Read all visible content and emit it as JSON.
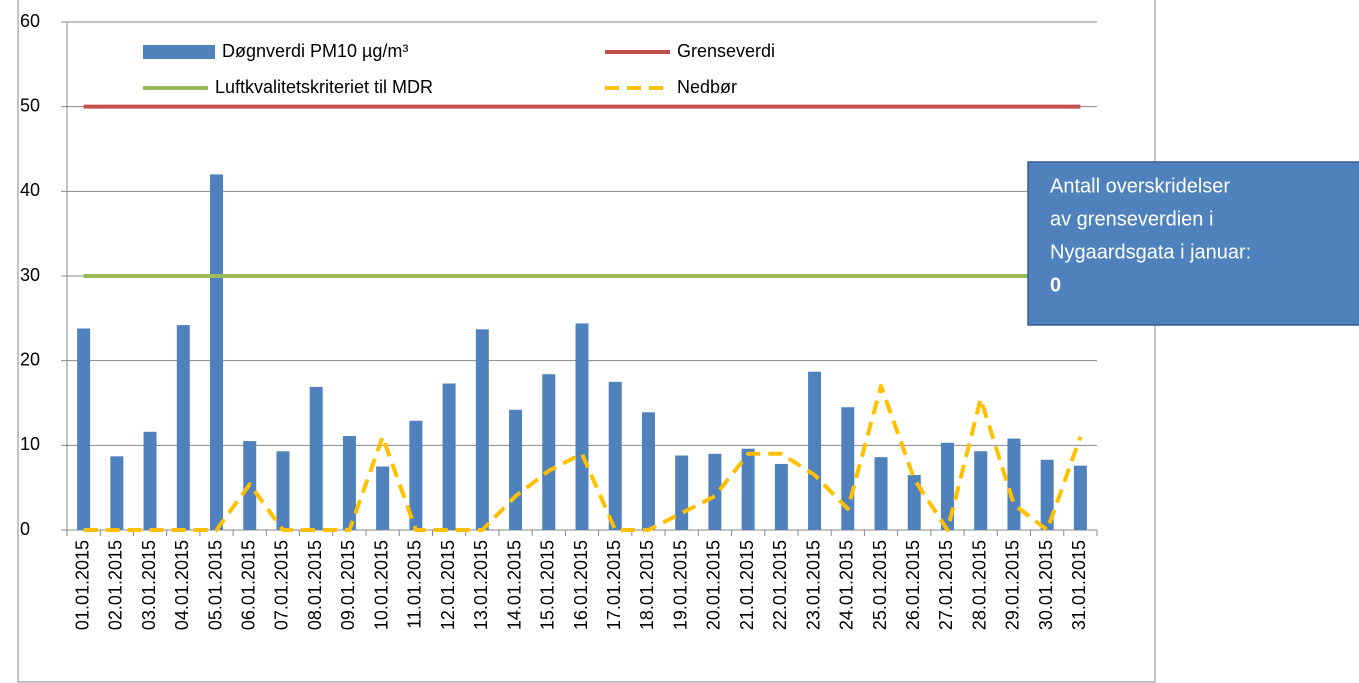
{
  "chart_data": {
    "type": "bar",
    "categories": [
      "01.01.2015",
      "02.01.2015",
      "03.01.2015",
      "04.01.2015",
      "05.01.2015",
      "06.01.2015",
      "07.01.2015",
      "08.01.2015",
      "09.01.2015",
      "10.01.2015",
      "11.01.2015",
      "12.01.2015",
      "13.01.2015",
      "14.01.2015",
      "15.01.2015",
      "16.01.2015",
      "17.01.2015",
      "18.01.2015",
      "19.01.2015",
      "20.01.2015",
      "21.01.2015",
      "22.01.2015",
      "23.01.2015",
      "24.01.2015",
      "25.01.2015",
      "26.01.2015",
      "27.01.2015",
      "28.01.2015",
      "29.01.2015",
      "30.01.2015",
      "31.01.2015"
    ],
    "series": [
      {
        "name": "Døgnverdi PM10 µg/m³",
        "color": "#4f81bd",
        "type": "bar",
        "values": [
          23.8,
          8.7,
          11.6,
          24.2,
          42,
          10.5,
          9.3,
          16.9,
          11.1,
          7.5,
          12.9,
          17.3,
          23.7,
          14.2,
          18.4,
          24.4,
          17.5,
          13.9,
          8.8,
          9.0,
          9.6,
          7.8,
          18.7,
          14.5,
          8.6,
          6.5,
          10.3,
          9.3,
          10.8,
          8.3,
          7.6
        ]
      },
      {
        "name": "Grenseverdi",
        "color": "#c0504d",
        "type": "hline",
        "value": 50
      },
      {
        "name": "Luftkvalitetskriteriet til MDR",
        "color": "#9bbb59",
        "type": "hline",
        "value": 30
      },
      {
        "name": "Nedbør",
        "color": "#ffc000",
        "type": "dashed",
        "values": [
          0,
          0,
          0,
          0,
          0,
          5.4,
          0,
          0,
          0,
          11,
          0,
          0,
          0,
          4,
          7,
          9,
          0,
          0,
          2,
          4,
          9,
          9,
          6.5,
          2.5,
          17,
          6,
          0,
          15.5,
          3,
          0,
          11
        ]
      }
    ],
    "ylim": [
      0,
      60
    ],
    "yticks": [
      0,
      10,
      20,
      30,
      40,
      50,
      60
    ],
    "grid": true,
    "annotation": {
      "lines": [
        "Antall overskridelser",
        "av grenseverdien i",
        "Nygaardsgata i januar:",
        "0"
      ],
      "color": "#4f81bd"
    }
  }
}
